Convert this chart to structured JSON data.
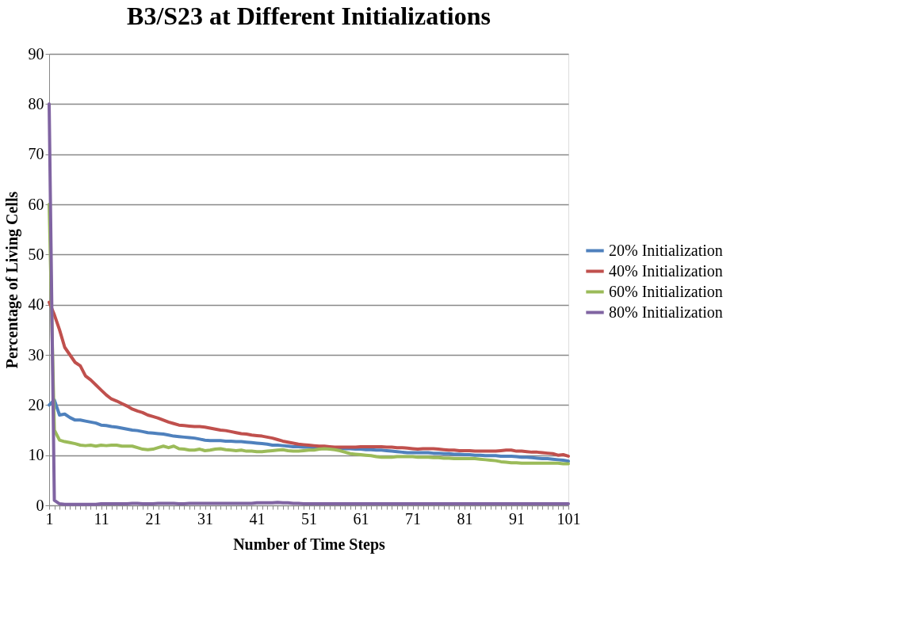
{
  "chart_data": {
    "type": "line",
    "title": "B3/S23 at Different Initializations",
    "xlabel": "Number of Time Steps",
    "ylabel": "Percentage of Living Cells",
    "categories": [
      "1",
      null,
      null,
      null,
      null,
      null,
      null,
      null,
      null,
      null,
      "11",
      null,
      null,
      null,
      null,
      null,
      null,
      null,
      null,
      null,
      "21",
      null,
      null,
      null,
      null,
      null,
      null,
      null,
      null,
      null,
      "31",
      null,
      null,
      null,
      null,
      null,
      null,
      null,
      null,
      null,
      "41",
      null,
      null,
      null,
      null,
      null,
      null,
      null,
      null,
      null,
      "51",
      null,
      null,
      null,
      null,
      null,
      null,
      null,
      null,
      null,
      "61",
      null,
      null,
      null,
      null,
      null,
      null,
      null,
      null,
      null,
      "71",
      null,
      null,
      null,
      null,
      null,
      null,
      null,
      null,
      null,
      "81",
      null,
      null,
      null,
      null,
      null,
      null,
      null,
      null,
      null,
      "91",
      null,
      null,
      null,
      null,
      null,
      null,
      null,
      null,
      null,
      "101"
    ],
    "ylim": [
      0,
      90
    ],
    "yticks": [
      0,
      10,
      20,
      30,
      40,
      50,
      60,
      70,
      80,
      90
    ],
    "grid": "y",
    "legend": "right",
    "line_style": "solid",
    "marker": "none",
    "series": [
      {
        "name": "20% Initialization",
        "color": "#4f81bd",
        "values": [
          20,
          21,
          18,
          18.2,
          17.5,
          17,
          17,
          16.8,
          16.6,
          16.4,
          16,
          15.9,
          15.7,
          15.6,
          15.4,
          15.2,
          15,
          14.9,
          14.7,
          14.5,
          14.4,
          14.3,
          14.2,
          14,
          13.8,
          13.7,
          13.6,
          13.5,
          13.4,
          13.2,
          13,
          12.9,
          12.9,
          12.9,
          12.8,
          12.8,
          12.7,
          12.7,
          12.6,
          12.5,
          12.4,
          12.3,
          12.2,
          12,
          12,
          11.9,
          11.8,
          11.7,
          11.7,
          11.6,
          11.6,
          11.5,
          11.5,
          11.5,
          11.5,
          11.4,
          11.4,
          11.3,
          11.3,
          11.2,
          11.2,
          11.1,
          11.1,
          11,
          11,
          10.9,
          10.8,
          10.7,
          10.6,
          10.5,
          10.5,
          10.5,
          10.5,
          10.5,
          10.4,
          10.4,
          10.3,
          10.3,
          10.2,
          10.2,
          10.1,
          10.1,
          10,
          10,
          9.9,
          9.9,
          9.9,
          9.8,
          9.8,
          9.8,
          9.7,
          9.6,
          9.6,
          9.5,
          9.4,
          9.3,
          9.3,
          9.2,
          9.1,
          9,
          8.8
        ]
      },
      {
        "name": "40% Initialization",
        "color": "#c0504d",
        "values": [
          40.5,
          38,
          35,
          31.5,
          30,
          28.5,
          27.8,
          25.8,
          25,
          24,
          23,
          22,
          21.2,
          20.8,
          20.3,
          19.8,
          19.2,
          18.8,
          18.5,
          18,
          17.7,
          17.4,
          17,
          16.6,
          16.3,
          16,
          15.9,
          15.8,
          15.7,
          15.7,
          15.6,
          15.4,
          15.2,
          15,
          14.9,
          14.7,
          14.5,
          14.3,
          14.2,
          14,
          13.9,
          13.8,
          13.6,
          13.4,
          13.1,
          12.8,
          12.6,
          12.4,
          12.2,
          12.1,
          12,
          11.9,
          11.8,
          11.8,
          11.7,
          11.6,
          11.6,
          11.6,
          11.6,
          11.6,
          11.7,
          11.7,
          11.7,
          11.7,
          11.7,
          11.6,
          11.6,
          11.5,
          11.5,
          11.4,
          11.3,
          11.2,
          11.3,
          11.3,
          11.3,
          11.2,
          11.1,
          11,
          11,
          10.9,
          10.9,
          10.9,
          10.8,
          10.8,
          10.8,
          10.8,
          10.8,
          10.9,
          11,
          11,
          10.8,
          10.8,
          10.7,
          10.6,
          10.6,
          10.5,
          10.4,
          10.3,
          10,
          10.1,
          9.8
        ]
      },
      {
        "name": "60% Initialization",
        "color": "#9bbb59",
        "values": [
          60,
          15,
          13,
          12.7,
          12.5,
          12.3,
          12,
          11.9,
          12,
          11.8,
          12,
          11.9,
          12,
          12,
          11.8,
          11.8,
          11.8,
          11.5,
          11.2,
          11.1,
          11.2,
          11.5,
          11.8,
          11.5,
          11.8,
          11.3,
          11.2,
          11,
          11,
          11.2,
          10.9,
          11,
          11.2,
          11.3,
          11.1,
          11,
          10.9,
          11,
          10.8,
          10.8,
          10.7,
          10.7,
          10.8,
          10.9,
          11,
          11.1,
          10.9,
          10.8,
          10.8,
          10.9,
          11,
          11,
          11.2,
          11.3,
          11.2,
          11.1,
          10.9,
          10.6,
          10.3,
          10.2,
          10.1,
          10,
          9.9,
          9.7,
          9.6,
          9.6,
          9.6,
          9.7,
          9.7,
          9.7,
          9.7,
          9.6,
          9.6,
          9.6,
          9.5,
          9.5,
          9.4,
          9.4,
          9.3,
          9.3,
          9.3,
          9.3,
          9.3,
          9.2,
          9.1,
          9,
          8.9,
          8.7,
          8.6,
          8.5,
          8.5,
          8.4,
          8.4,
          8.4,
          8.4,
          8.4,
          8.4,
          8.4,
          8.4,
          8.3,
          8.3
        ]
      },
      {
        "name": "80% Initialization",
        "color": "#8064a2",
        "values": [
          80,
          1,
          0.3,
          0.2,
          0.2,
          0.2,
          0.2,
          0.2,
          0.2,
          0.2,
          0.3,
          0.3,
          0.3,
          0.3,
          0.3,
          0.3,
          0.4,
          0.4,
          0.3,
          0.3,
          0.3,
          0.4,
          0.4,
          0.4,
          0.4,
          0.3,
          0.3,
          0.4,
          0.4,
          0.4,
          0.4,
          0.4,
          0.4,
          0.4,
          0.4,
          0.4,
          0.4,
          0.4,
          0.4,
          0.4,
          0.5,
          0.5,
          0.5,
          0.5,
          0.6,
          0.5,
          0.5,
          0.4,
          0.4,
          0.3,
          0.3,
          0.3,
          0.3,
          0.3,
          0.3,
          0.3,
          0.3,
          0.3,
          0.3,
          0.3,
          0.3,
          0.3,
          0.3,
          0.3,
          0.3,
          0.3,
          0.3,
          0.3,
          0.3,
          0.3,
          0.3,
          0.3,
          0.3,
          0.3,
          0.3,
          0.3,
          0.3,
          0.3,
          0.3,
          0.3,
          0.3,
          0.3,
          0.3,
          0.3,
          0.3,
          0.3,
          0.3,
          0.3,
          0.3,
          0.3,
          0.3,
          0.3,
          0.3,
          0.3,
          0.3,
          0.3,
          0.3,
          0.3,
          0.3,
          0.3,
          0.3
        ]
      }
    ]
  }
}
